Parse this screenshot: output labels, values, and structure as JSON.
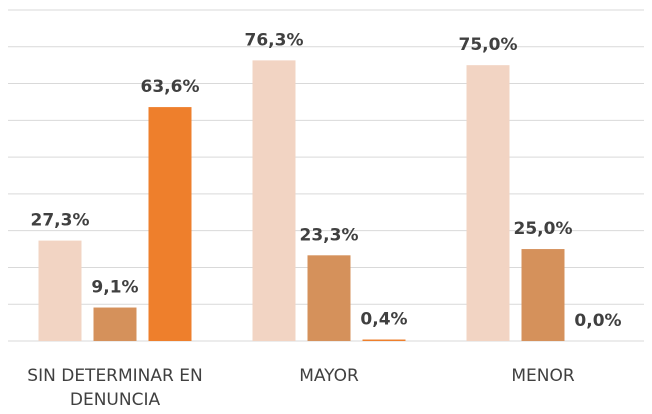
{
  "chart_data": {
    "type": "bar",
    "categories": [
      "SIN DETERMINAR EN DENUNCIA",
      "MAYOR",
      "MENOR"
    ],
    "series": [
      {
        "color": "#f2d4c3",
        "values": [
          27.3,
          76.3,
          75.0
        ],
        "value_labels": [
          "27,3%",
          "76,3%",
          "75,0%"
        ]
      },
      {
        "color": "#d5915b",
        "values": [
          9.1,
          23.3,
          25.0
        ],
        "value_labels": [
          "9,1%",
          "23,3%",
          "25,0%"
        ]
      },
      {
        "color": "#ee7f2c",
        "values": [
          63.6,
          0.4,
          0.0
        ],
        "value_labels": [
          "63,6%",
          "0,4%",
          "0,0%"
        ]
      }
    ],
    "ylim": [
      0,
      90
    ],
    "yticks": [
      0,
      10,
      20,
      30,
      40,
      50,
      60,
      70,
      80,
      90
    ],
    "grid": true
  }
}
